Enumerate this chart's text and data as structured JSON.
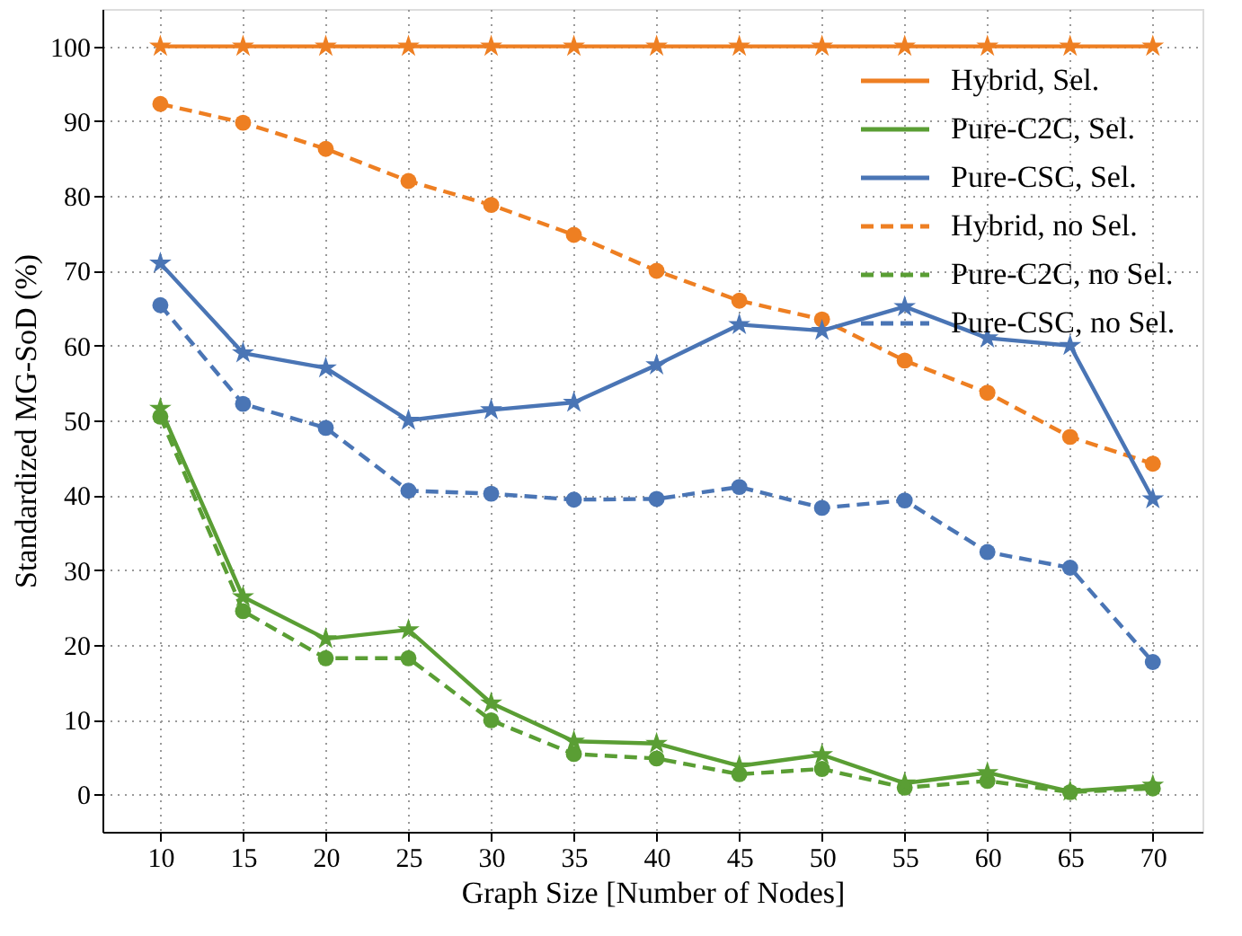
{
  "chart_data": {
    "type": "line",
    "xlabel": "Graph Size [Number of Nodes]",
    "ylabel": "Standardized MG-SoD (%)",
    "x": [
      10,
      15,
      20,
      25,
      30,
      35,
      40,
      45,
      50,
      55,
      60,
      65,
      70
    ],
    "xlim": [
      6.5,
      73
    ],
    "xticks": [
      10,
      15,
      20,
      25,
      30,
      35,
      40,
      45,
      50,
      55,
      60,
      65,
      70
    ],
    "ylim": [
      -5,
      105
    ],
    "yticks": [
      0,
      10,
      20,
      30,
      40,
      50,
      60,
      70,
      80,
      90,
      100
    ],
    "grid": true,
    "legend": "top right",
    "series": [
      {
        "name": "Hybrid, Sel.",
        "color": "#ee7f22",
        "line_style": "solid",
        "marker": "star",
        "values": [
          100,
          100,
          100,
          100,
          100,
          100,
          100,
          100,
          100,
          100,
          100,
          100,
          100
        ]
      },
      {
        "name": "Pure-C2C, Sel.",
        "color": "#5a9e34",
        "line_style": "solid",
        "marker": "star",
        "values": [
          51.6,
          26.4,
          20.8,
          22,
          12.2,
          7.1,
          6.8,
          3.8,
          5.3,
          1.5,
          2.9,
          0.4,
          1.2
        ]
      },
      {
        "name": "Pure-CSC, Sel.",
        "color": "#4a75b5",
        "line_style": "solid",
        "marker": "star",
        "values": [
          71,
          59,
          57,
          50,
          51.4,
          52.4,
          57.4,
          62.8,
          62,
          65.2,
          61,
          60,
          39.5
        ]
      },
      {
        "name": "Hybrid, no Sel.",
        "color": "#ee7f22",
        "line_style": "dashed",
        "marker": "circle",
        "values": [
          92.3,
          89.8,
          86.3,
          82,
          78.8,
          74.8,
          70,
          66,
          63.5,
          58,
          53.7,
          47.8,
          44.2
        ]
      },
      {
        "name": "Pure-C2C, no Sel.",
        "color": "#5a9e34",
        "line_style": "dashed",
        "marker": "circle",
        "values": [
          50.5,
          24.5,
          18.2,
          18.2,
          9.9,
          5.4,
          4.8,
          2.7,
          3.4,
          0.9,
          1.8,
          0.3,
          0.8
        ]
      },
      {
        "name": "Pure-CSC, no Sel.",
        "color": "#4a75b5",
        "line_style": "dashed",
        "marker": "circle",
        "values": [
          65.4,
          52.2,
          49,
          40.6,
          40.2,
          39.4,
          39.5,
          41.1,
          38.3,
          39.3,
          32.4,
          30.3,
          17.7
        ]
      }
    ]
  }
}
